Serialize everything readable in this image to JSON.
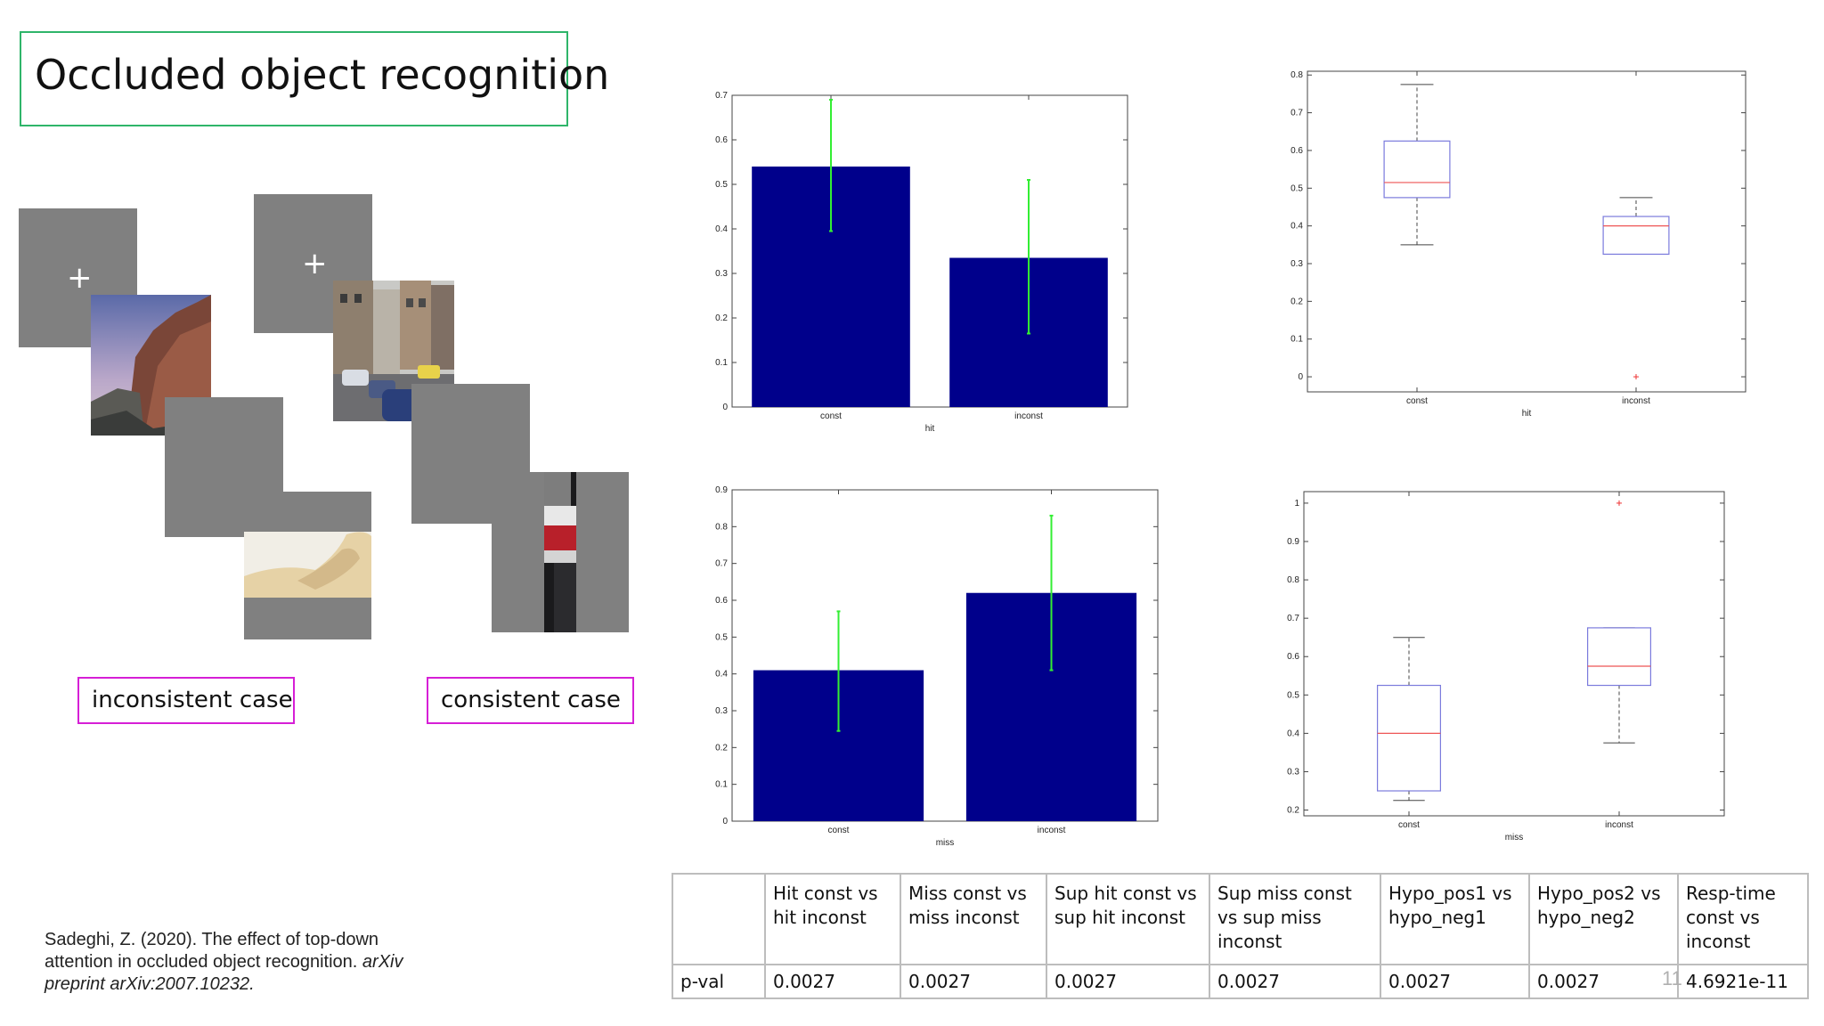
{
  "slide": {
    "title": "Occluded object recognition",
    "page_number": "11",
    "labels": {
      "inconsistent": "inconsistent case",
      "consistent": "consistent case"
    },
    "fixation_symbol": "+",
    "citation": {
      "line1": "Sadeghi, Z. (2020). The effect of top-down",
      "line2_plain": "attention in occluded object recognition. ",
      "line2_italic": "arXiv",
      "line3_italic": "preprint arXiv:2007.10232."
    }
  },
  "colors": {
    "title_border": "#2fb56a",
    "case_border": "#d61fd6",
    "bar": "#00008b",
    "errorbar": "#33ee33",
    "box": "#7b7bdd",
    "median": "#ee5555",
    "outlier": "#ee3333",
    "stimulus_gray": "#808080"
  },
  "chart_data": [
    {
      "type": "bar",
      "xlabel": "hit",
      "ylabel": "",
      "categories": [
        "const",
        "inconst"
      ],
      "values": [
        0.54,
        0.335
      ],
      "error_low": [
        0.395,
        0.165
      ],
      "error_high": [
        0.69,
        0.51
      ],
      "ylim": [
        0,
        0.7
      ],
      "yticks": [
        0,
        0.1,
        0.2,
        0.3,
        0.4,
        0.5,
        0.6,
        0.7
      ],
      "ytick_labels": [
        "0",
        "0.1",
        "0.2",
        "0.3",
        "0.4",
        "0.5",
        "0.6",
        "0.7"
      ]
    },
    {
      "type": "box",
      "xlabel": "hit",
      "ylabel": "",
      "categories": [
        "const",
        "inconst"
      ],
      "boxes": [
        {
          "whisker_low": 0.35,
          "q1": 0.475,
          "median": 0.515,
          "q3": 0.625,
          "whisker_high": 0.775
        },
        {
          "whisker_low": 0.325,
          "q1": 0.325,
          "median": 0.4,
          "q3": 0.425,
          "whisker_high": 0.475
        }
      ],
      "outliers": [
        {
          "category": "inconst",
          "value": 0
        }
      ],
      "ylim": [
        -0.04,
        0.81
      ],
      "yticks": [
        0,
        0.1,
        0.2,
        0.3,
        0.4,
        0.5,
        0.6,
        0.7,
        0.8
      ],
      "ytick_labels": [
        "0",
        "0.1",
        "0.2",
        "0.3",
        "0.4",
        "0.5",
        "0.6",
        "0.7",
        "0.8"
      ]
    },
    {
      "type": "bar",
      "xlabel": "miss",
      "ylabel": "",
      "categories": [
        "const",
        "inconst"
      ],
      "values": [
        0.41,
        0.62
      ],
      "error_low": [
        0.245,
        0.41
      ],
      "error_high": [
        0.57,
        0.83
      ],
      "ylim": [
        0,
        0.9
      ],
      "yticks": [
        0,
        0.1,
        0.2,
        0.3,
        0.4,
        0.5,
        0.6,
        0.7,
        0.8,
        0.9
      ],
      "ytick_labels": [
        "0",
        "0.1",
        "0.2",
        "0.3",
        "0.4",
        "0.5",
        "0.6",
        "0.7",
        "0.8",
        "0.9"
      ]
    },
    {
      "type": "box",
      "xlabel": "miss",
      "ylabel": "",
      "categories": [
        "const",
        "inconst"
      ],
      "boxes": [
        {
          "whisker_low": 0.225,
          "q1": 0.25,
          "median": 0.4,
          "q3": 0.525,
          "whisker_high": 0.65
        },
        {
          "whisker_low": 0.375,
          "q1": 0.525,
          "median": 0.575,
          "q3": 0.675,
          "whisker_high": 0.675
        }
      ],
      "outliers": [
        {
          "category": "inconst",
          "value": 1.0
        }
      ],
      "ylim": [
        0.185,
        1.03
      ],
      "yticks": [
        0.2,
        0.3,
        0.4,
        0.5,
        0.6,
        0.7,
        0.8,
        0.9,
        1
      ],
      "ytick_labels": [
        "0.2",
        "0.3",
        "0.4",
        "0.5",
        "0.6",
        "0.7",
        "0.8",
        "0.9",
        "1"
      ]
    }
  ],
  "stats_table": {
    "headers": [
      "",
      "Hit const vs hit inconst",
      "Miss const vs miss inconst",
      "Sup hit const vs sup hit inconst",
      "Sup miss const vs sup miss inconst",
      "Hypo_pos1 vs hypo_neg1",
      "Hypo_pos2 vs hypo_neg2",
      "Resp-time const vs inconst"
    ],
    "row": [
      "p-val",
      "0.0027",
      "0.0027",
      "0.0027",
      "0.0027",
      "0.0027",
      "0.0027",
      "4.6921e-11"
    ]
  }
}
